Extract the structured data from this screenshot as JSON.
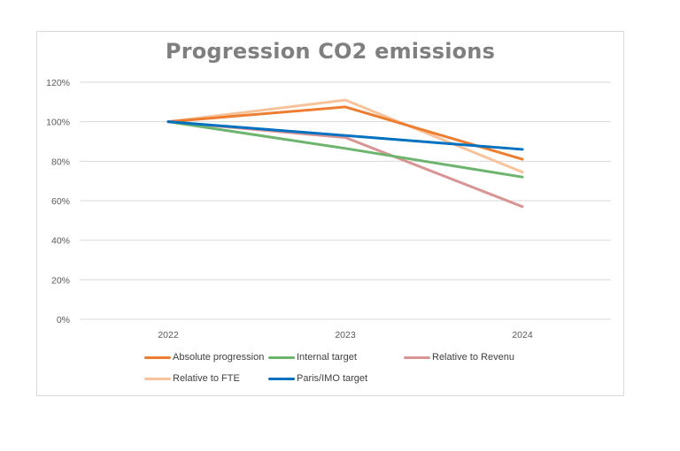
{
  "chart_data": {
    "type": "line",
    "title": "Progression CO2 emissions",
    "xlabel": "",
    "ylabel": "",
    "categories": [
      "2022",
      "2023",
      "2024"
    ],
    "ylim": [
      0,
      1.2
    ],
    "yticks": [
      0,
      0.2,
      0.4,
      0.6,
      0.8,
      1.0,
      1.2
    ],
    "ytick_labels": [
      "0%",
      "20%",
      "40%",
      "60%",
      "80%",
      "100%",
      "120%"
    ],
    "grid": true,
    "legend_position": "bottom",
    "series": [
      {
        "name": "Absolute progression",
        "color": "#ED7D31",
        "values": [
          1.0,
          1.075,
          0.81
        ]
      },
      {
        "name": "Internal target",
        "color": "#6DB56E",
        "values": [
          1.0,
          0.865,
          0.72
        ]
      },
      {
        "name": "Relative to Revenu",
        "color": "#D99594",
        "values": [
          1.0,
          0.92,
          0.57
        ]
      },
      {
        "name": "Relative to FTE",
        "color": "#F8C39A",
        "values": [
          1.0,
          1.11,
          0.745
        ]
      },
      {
        "name": "Paris/IMO target",
        "color": "#0070C0",
        "values": [
          1.0,
          0.93,
          0.86
        ]
      }
    ]
  }
}
